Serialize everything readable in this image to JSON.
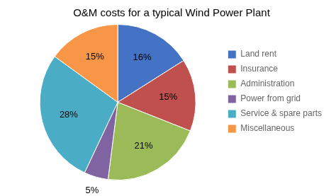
{
  "chart_data": {
    "type": "pie",
    "title": "O&M costs for a typical Wind Power Plant",
    "categories": [
      "Land rent",
      "Insurance",
      "Administration",
      "Power from grid",
      "Service & spare parts",
      "Miscellaneous"
    ],
    "values": [
      16,
      15,
      21,
      5,
      28,
      15
    ],
    "value_labels": [
      "16%",
      "15%",
      "21%",
      "5%",
      "28%",
      "15%"
    ],
    "colors": [
      "#4472C4",
      "#C0504D",
      "#9BBB59",
      "#8064A2",
      "#4BACC6",
      "#F79646"
    ],
    "data_labels": true,
    "legend": "right"
  }
}
